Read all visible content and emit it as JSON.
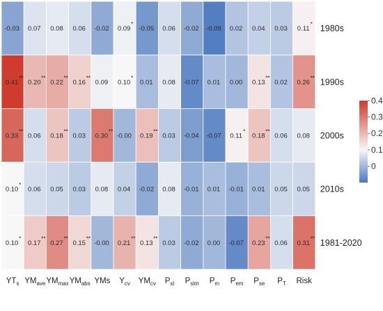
{
  "chart_data": {
    "type": "heatmap",
    "rows": [
      "1980s",
      "1990s",
      "2000s",
      "2010s",
      "1981-2020"
    ],
    "columns": [
      {
        "base": "YT",
        "sub": "s"
      },
      {
        "base": "YM",
        "sub": "ave"
      },
      {
        "base": "YM",
        "sub": "max"
      },
      {
        "base": "YM",
        "sub": "abs"
      },
      {
        "base": "YMs",
        "sub": ""
      },
      {
        "base": "Y",
        "sub": "cv"
      },
      {
        "base": "YM",
        "sub": "cv"
      },
      {
        "base": "P",
        "sub": "sl"
      },
      {
        "base": "P",
        "sub": "slm"
      },
      {
        "base": "P",
        "sub": "m"
      },
      {
        "base": "P",
        "sub": "em"
      },
      {
        "base": "P",
        "sub": "se"
      },
      {
        "base": "P",
        "sub": "T"
      },
      {
        "base": "Risk",
        "sub": ""
      }
    ],
    "values": [
      [
        -0.03,
        0.07,
        0.08,
        0.06,
        -0.02,
        0.09,
        -0.05,
        0.06,
        -0.02,
        -0.09,
        0.02,
        0.04,
        0.03,
        0.11
      ],
      [
        0.41,
        0.2,
        0.22,
        0.16,
        0.09,
        0.1,
        0.01,
        0.08,
        -0.07,
        0.01,
        0.0,
        0.13,
        0.02,
        0.26
      ],
      [
        0.33,
        0.06,
        0.18,
        0.03,
        0.3,
        -0.0,
        0.19,
        0.03,
        -0.04,
        -0.07,
        0.11,
        0.18,
        0.06,
        0.08
      ],
      [
        0.1,
        0.06,
        0.05,
        0.03,
        0.08,
        0.04,
        -0.02,
        0.08,
        -0.01,
        0.01,
        -0.01,
        0.01,
        0.05,
        0.05
      ],
      [
        0.1,
        0.17,
        0.27,
        0.15,
        -0.0,
        0.21,
        0.13,
        0.03,
        -0.02,
        0.0,
        -0.07,
        0.23,
        0.06,
        0.31
      ]
    ],
    "labels": [
      [
        "-0.03",
        "0.07",
        "0.08",
        "0.06",
        "-0.02",
        "0.09",
        "-0.05",
        "0.06",
        "-0.02",
        "-0.09",
        "0.02",
        "0.04",
        "0.03",
        "0.11"
      ],
      [
        "0.41",
        "0.20",
        "0.22",
        "0.16",
        "0.09",
        "0.10",
        "0.01",
        "0.08",
        "-0.07",
        "0.01",
        "0.00",
        "0.13",
        "0.02",
        "0.26"
      ],
      [
        "0.33",
        "0.06",
        "0.18",
        "0.03",
        "0.30",
        "-0.00",
        "0.19",
        "0.03",
        "-0.04",
        "-0.07",
        "0.11",
        "0.18",
        "0.06",
        "0.08"
      ],
      [
        "0.10",
        "0.06",
        "0.05",
        "0.03",
        "0.08",
        "0.04",
        "-0.02",
        "0.08",
        "-0.01",
        "0.01",
        "-0.01",
        "0.01",
        "0.05",
        "0.05"
      ],
      [
        "0.10",
        "0.17",
        "0.27",
        "0.15",
        "-0.00",
        "0.21",
        "0.13",
        "0.03",
        "-0.02",
        "0.00",
        "-0.07",
        "0.23",
        "0.06",
        "0.31"
      ]
    ],
    "stars": [
      [
        "",
        "",
        "",
        "",
        "",
        "*",
        "",
        "",
        "",
        "",
        "",
        "",
        "",
        "*"
      ],
      [
        "**",
        "**",
        "**",
        "**",
        "",
        "*",
        "",
        "",
        "",
        "",
        "",
        "**",
        "",
        "**"
      ],
      [
        "**",
        "",
        "**",
        "",
        "**",
        "",
        "**",
        "",
        "",
        "",
        "*",
        "**",
        "",
        ""
      ],
      [
        "*",
        "",
        "",
        "",
        "",
        "",
        "",
        "",
        "",
        "",
        "",
        "",
        "",
        ""
      ],
      [
        "*",
        "**",
        "**",
        "**",
        "",
        "**",
        "**",
        "",
        "",
        "",
        "",
        "**",
        "",
        "**"
      ]
    ],
    "colorbar": {
      "min": -0.1,
      "max": 0.4,
      "center": 0.1,
      "ticks": [
        0,
        0.1,
        0.2,
        0.3,
        0.4
      ],
      "tick_labels": [
        "0",
        "0.1",
        "0.2",
        "0.3",
        "0.4"
      ],
      "colors": {
        "low": "#4a78bf",
        "mid": "#f7f7f7",
        "high": "#cf3b2c"
      }
    },
    "title": "",
    "xlabel": "",
    "ylabel": ""
  }
}
